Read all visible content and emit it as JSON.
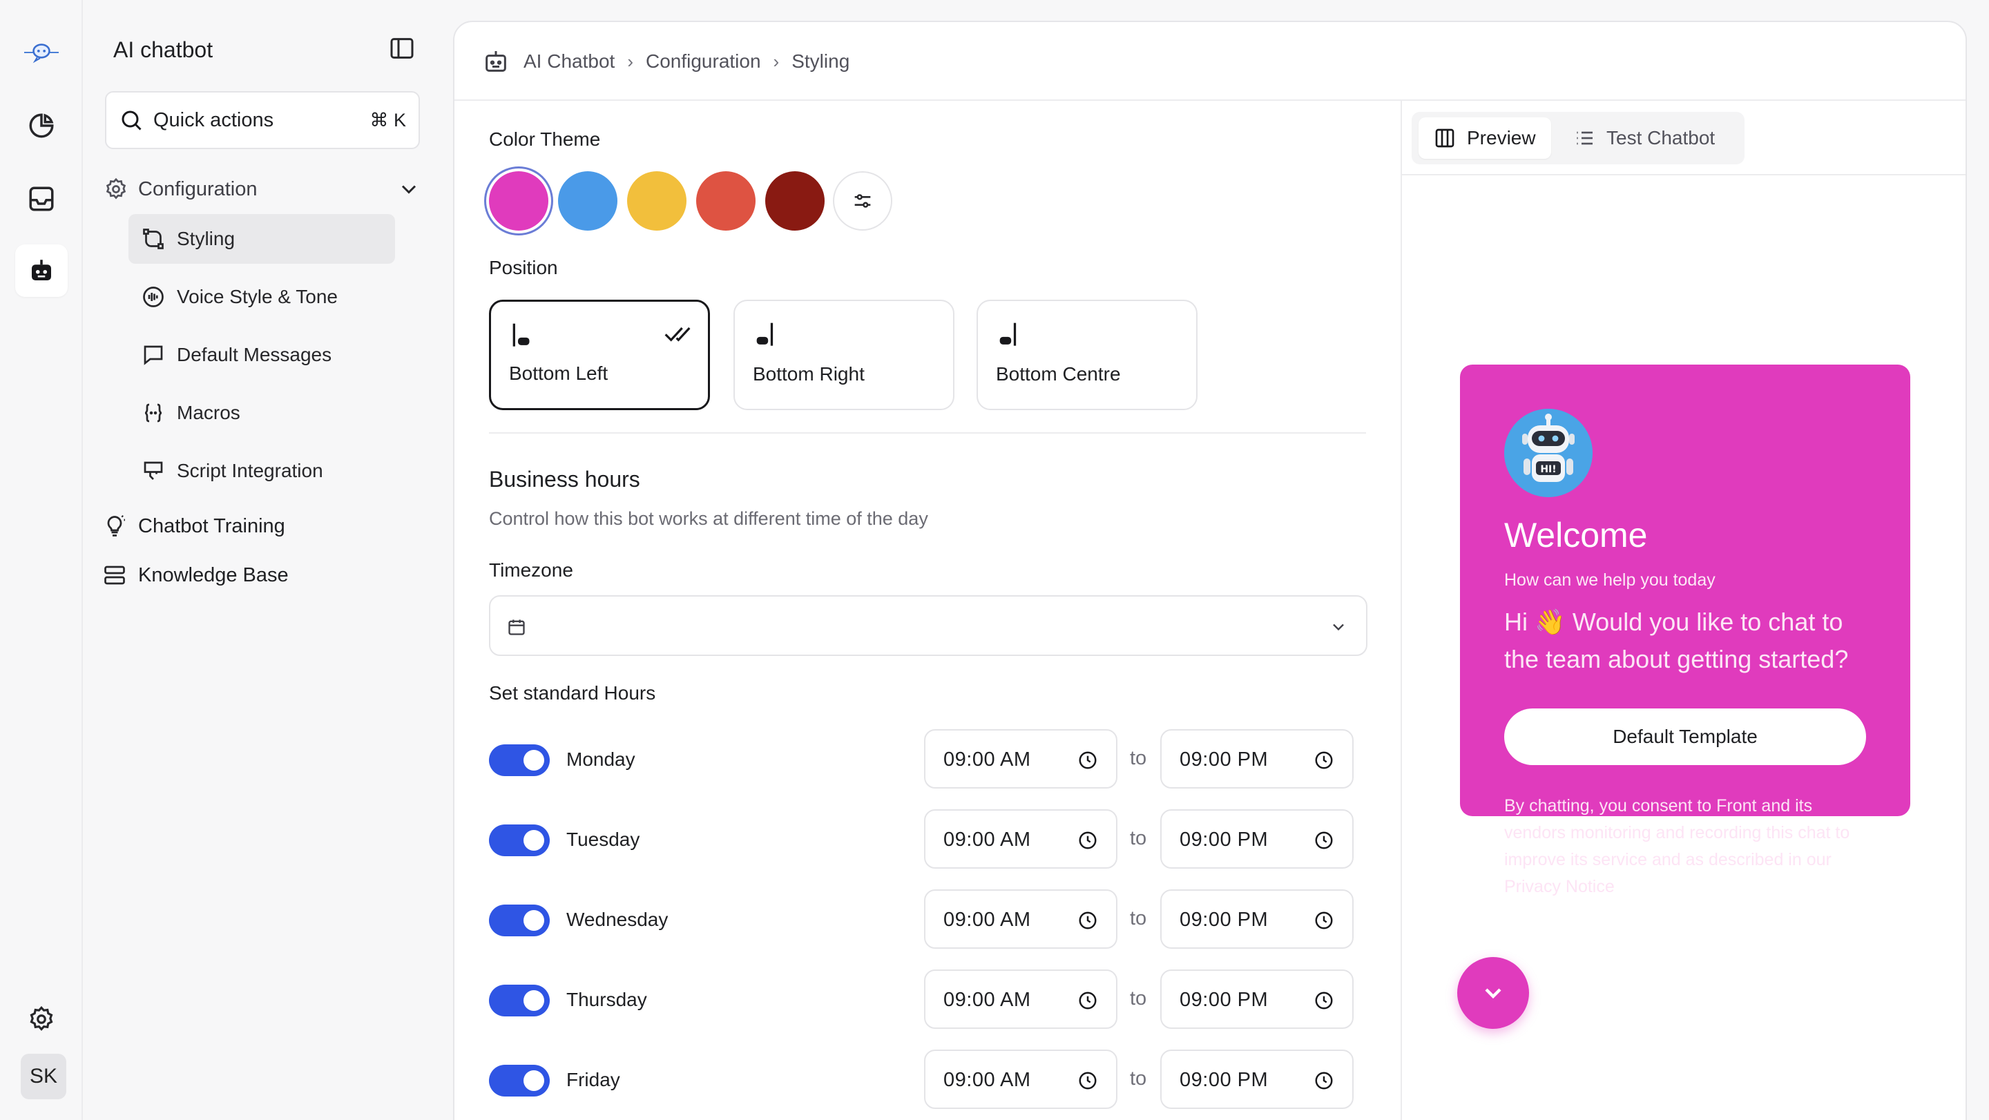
{
  "sidebar": {
    "title": "AI chatbot",
    "quick_actions": {
      "label": "Quick actions",
      "shortcut": "⌘ K"
    },
    "group": {
      "label": "Configuration",
      "expanded": true
    },
    "sub_items": [
      {
        "label": "Styling",
        "icon": "pen-tool-icon",
        "active": true
      },
      {
        "label": "Voice Style & Tone",
        "icon": "audio-wave-icon",
        "active": false
      },
      {
        "label": "Default Messages",
        "icon": "message-square-icon",
        "active": false
      },
      {
        "label": "Macros",
        "icon": "braces-icon",
        "active": false
      },
      {
        "label": "Script Integration",
        "icon": "plug-icon",
        "active": false
      }
    ],
    "top_items": [
      {
        "label": "Chatbot Training",
        "icon": "lightbulb-icon"
      },
      {
        "label": "Knowledge Base",
        "icon": "database-icon"
      }
    ]
  },
  "rail": {
    "avatar_initials": "SK"
  },
  "breadcrumb": [
    "AI Chatbot",
    "Configuration",
    "Styling"
  ],
  "color_theme": {
    "label": "Color Theme",
    "swatches": [
      "#e03bbd",
      "#4a9ae8",
      "#f2bf3c",
      "#de5342",
      "#891a12"
    ],
    "selected_index": 0
  },
  "position": {
    "label": "Position",
    "options": [
      {
        "label": "Bottom Left",
        "selected": true
      },
      {
        "label": "Bottom Right",
        "selected": false
      },
      {
        "label": "Bottom Centre",
        "selected": false
      }
    ]
  },
  "business_hours": {
    "title": "Business hours",
    "subtitle": "Control how this bot works at different time of the day",
    "timezone_label": "Timezone",
    "timezone_value": "",
    "standard_hours_label": "Set standard Hours",
    "separator": "to",
    "days": [
      {
        "name": "Monday",
        "enabled": true,
        "from": "09:00 AM",
        "to": "09:00 PM"
      },
      {
        "name": "Tuesday",
        "enabled": true,
        "from": "09:00 AM",
        "to": "09:00 PM"
      },
      {
        "name": "Wednesday",
        "enabled": true,
        "from": "09:00 AM",
        "to": "09:00 PM"
      },
      {
        "name": "Thursday",
        "enabled": true,
        "from": "09:00 AM",
        "to": "09:00 PM"
      },
      {
        "name": "Friday",
        "enabled": true,
        "from": "09:00 AM",
        "to": "09:00 PM"
      }
    ]
  },
  "preview": {
    "tabs": [
      {
        "label": "Preview",
        "active": true
      },
      {
        "label": "Test Chatbot",
        "active": false
      }
    ],
    "widget": {
      "avatar_text": "HI!",
      "title": "Welcome",
      "subtitle": "How can we help you today",
      "message": "Hi 👋 Would you like to chat to the team about getting started?",
      "button": "Default Template",
      "consent": "By chatting, you consent to Front and its vendors monitoring and recording this chat to improve its service and as described in our Privacy Notice"
    }
  }
}
